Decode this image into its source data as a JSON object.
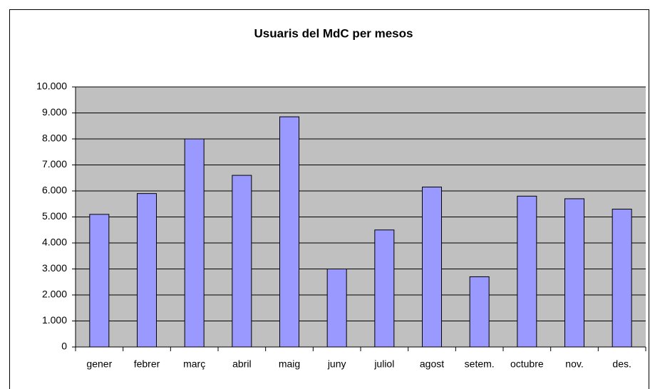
{
  "chart_data": {
    "type": "bar",
    "title": "Usuaris del MdC per mesos",
    "categories": [
      "gener",
      "febrer",
      "març",
      "abril",
      "maig",
      "juny",
      "juliol",
      "agost",
      "setem.",
      "octubre",
      "nov.",
      "des."
    ],
    "values": [
      5100,
      5900,
      8000,
      6600,
      8850,
      3000,
      4500,
      6150,
      2700,
      5800,
      5700,
      5300
    ],
    "color": "#9999ff",
    "ylim": [
      0,
      10000
    ],
    "yticks": [
      0,
      {
        "value": 1000,
        "label": "1.000"
      },
      {
        "value": 2000,
        "label": "2.000"
      },
      {
        "value": 3000,
        "label": "3.000"
      },
      {
        "value": 4000,
        "label": "4.000"
      },
      {
        "value": 5000,
        "label": "5.000"
      },
      {
        "value": 6000,
        "label": "6.000"
      },
      {
        "value": 7000,
        "label": "7.000"
      },
      {
        "value": 8000,
        "label": "8.000"
      },
      {
        "value": 9000,
        "label": "9.000"
      },
      {
        "value": 10000,
        "label": "10.000"
      }
    ],
    "grid": true
  }
}
